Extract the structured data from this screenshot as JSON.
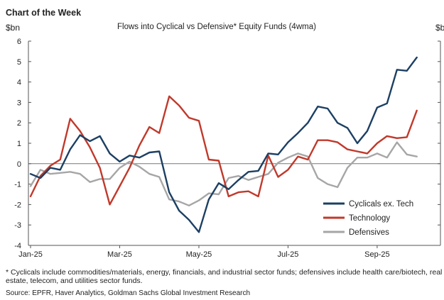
{
  "header": {
    "kicker": "Chart of the Week",
    "unit_left": "$bn",
    "unit_right": "$b"
  },
  "footnote": "* Cyclicals include commodities/materials, energy, financials, and industrial sector funds; defensives include health care/biotech, real estate, telecom, and utilities sector funds.",
  "source": "Source: EPFR, Haver Analytics, Goldman Sachs Global Investment Research",
  "colors": {
    "cyclicals": "#1c3f63",
    "technology": "#c0392b",
    "defensives": "#a6a6a6",
    "axis": "#555555"
  },
  "chart_data": {
    "type": "line",
    "title": "Flows into Cyclical vs Defensive*  Equity Funds (4wma)",
    "ylabel": "$bn",
    "ylim": [
      -4,
      6
    ],
    "yticks": [
      -4,
      -3,
      -2,
      -1,
      0,
      1,
      2,
      3,
      4,
      5,
      6
    ],
    "xticks": [
      "Jan-25",
      "Mar-25",
      "May-25",
      "Jul-25",
      "Sep-25"
    ],
    "x_tick_weeks": [
      0,
      9,
      17,
      26,
      35
    ],
    "grid": false,
    "legend_position": "bottom-right",
    "series": [
      {
        "name": "Cyclicals ex. Tech",
        "color_key": "cyclicals",
        "values": [
          -0.5,
          -0.7,
          -0.2,
          -0.3,
          0.7,
          1.4,
          1.1,
          1.35,
          0.5,
          0.1,
          0.4,
          0.3,
          0.55,
          0.6,
          -1.4,
          -2.3,
          -2.75,
          -3.35,
          -1.75,
          -0.95,
          -1.25,
          -0.8,
          -0.4,
          -0.35,
          0.5,
          0.45,
          1.05,
          1.5,
          2.0,
          2.8,
          2.7,
          2.0,
          1.75,
          1.0,
          1.6,
          2.75,
          2.95,
          4.6,
          4.55,
          5.2
        ]
      },
      {
        "name": "Technology",
        "color_key": "technology",
        "values": [
          -1.6,
          -0.6,
          -0.1,
          0.2,
          2.2,
          1.6,
          0.8,
          -0.2,
          -2.0,
          -1.1,
          -0.2,
          0.9,
          1.8,
          1.5,
          3.3,
          2.85,
          2.25,
          2.1,
          0.2,
          0.15,
          -1.6,
          -1.4,
          -1.35,
          -1.6,
          0.4,
          -0.65,
          -0.3,
          0.35,
          0.2,
          1.15,
          1.15,
          1.05,
          0.7,
          0.6,
          0.5,
          1.0,
          1.35,
          1.25,
          1.3,
          2.6
        ]
      },
      {
        "name": "Defensives",
        "color_key": "defensives",
        "values": [
          -1.1,
          -0.3,
          -0.5,
          -0.45,
          -0.4,
          -0.5,
          -0.9,
          -0.75,
          -0.75,
          -0.2,
          0.1,
          -0.15,
          -0.5,
          -0.65,
          -1.75,
          -1.85,
          -2.05,
          -1.8,
          -1.45,
          -1.5,
          -0.7,
          -0.6,
          -0.8,
          -0.65,
          -0.5,
          0.05,
          0.3,
          0.5,
          0.35,
          -0.7,
          -1.0,
          -1.15,
          -0.2,
          0.3,
          0.3,
          0.5,
          0.3,
          1.05,
          0.45,
          0.35
        ]
      }
    ]
  }
}
